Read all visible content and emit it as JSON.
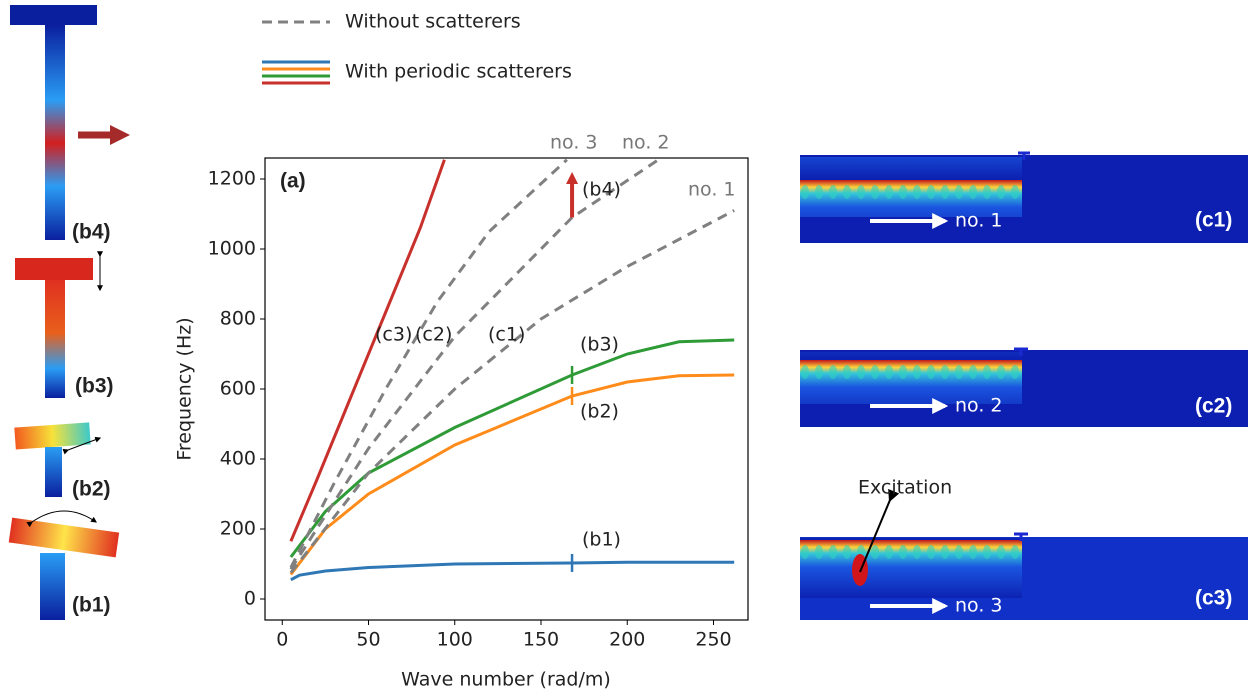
{
  "legend": [
    "Without scatterers",
    "With periodic scatterers"
  ],
  "panels_b": [
    "(b4)",
    "(b3)",
    "(b2)",
    "(b1)"
  ],
  "panels_c": [
    "(c1)",
    "(c2)",
    "(c3)"
  ],
  "excitation": "Excitation",
  "chart_data": {
    "type": "line",
    "panel_label": "(a)",
    "xlabel": "Wave number (rad/m)",
    "ylabel": "Frequency (Hz)",
    "xlim": [
      -10,
      270
    ],
    "ylim": [
      -60,
      1260
    ],
    "xticks": [
      0,
      50,
      100,
      150,
      200,
      250
    ],
    "yticks": [
      0,
      200,
      400,
      600,
      800,
      1000,
      1200
    ],
    "annotations": [
      "(c3)",
      "(c2)",
      "(c1)"
    ],
    "marker_x": 168,
    "arrow_y": [
      1090,
      1220
    ],
    "arrow_color": "#c8302c",
    "series": [
      {
        "name": "(b1)",
        "color": "#2f78b5",
        "dashed": false,
        "x": [
          5,
          10,
          25,
          50,
          100,
          168,
          200,
          262
        ],
        "values": [
          55,
          68,
          80,
          90,
          100,
          103,
          105,
          105
        ]
      },
      {
        "name": "(b2)",
        "color": "#ff8c1a",
        "dashed": false,
        "x": [
          5,
          25,
          50,
          100,
          168,
          200,
          230,
          262
        ],
        "values": [
          70,
          200,
          300,
          440,
          580,
          620,
          638,
          640
        ]
      },
      {
        "name": "(b3)",
        "color": "#2e9b37",
        "dashed": false,
        "x": [
          5,
          25,
          50,
          100,
          168,
          200,
          230,
          262
        ],
        "values": [
          120,
          250,
          360,
          490,
          640,
          700,
          735,
          740
        ]
      },
      {
        "name": "(b4)",
        "color": "#c8302c",
        "dashed": false,
        "x": [
          5,
          20,
          40,
          60,
          80,
          94
        ],
        "values": [
          165,
          340,
          580,
          820,
          1060,
          1255
        ]
      },
      {
        "name": "no. 1",
        "color": "#808080",
        "dashed": true,
        "x": [
          5,
          50,
          100,
          150,
          200,
          262
        ],
        "values": [
          75,
          360,
          600,
          800,
          950,
          1110
        ]
      },
      {
        "name": "no. 2",
        "color": "#808080",
        "dashed": true,
        "x": [
          5,
          50,
          100,
          150,
          168,
          218
        ],
        "values": [
          85,
          430,
          750,
          1000,
          1090,
          1255
        ]
      },
      {
        "name": "no. 3",
        "color": "#808080",
        "dashed": true,
        "x": [
          5,
          30,
          60,
          90,
          120,
          165
        ],
        "values": [
          90,
          330,
          600,
          850,
          1050,
          1255
        ]
      }
    ]
  }
}
